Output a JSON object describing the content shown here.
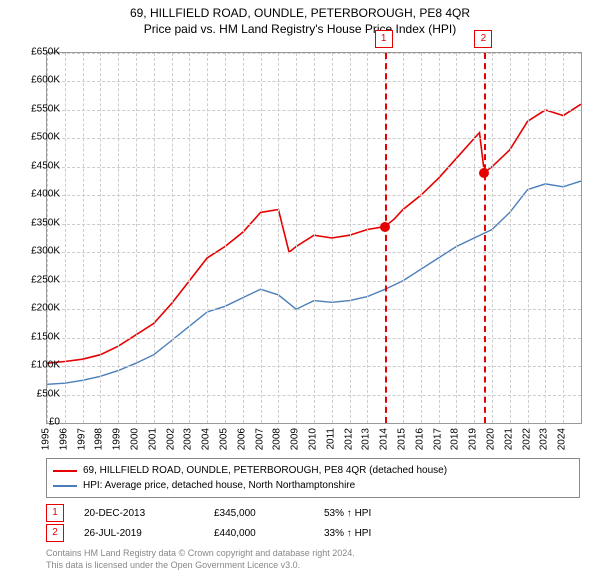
{
  "title_line1": "69, HILLFIELD ROAD, OUNDLE, PETERBOROUGH, PE8 4QR",
  "title_line2": "Price paid vs. HM Land Registry's House Price Index (HPI)",
  "chart": {
    "type": "line",
    "x_min": 1995,
    "x_max": 2025,
    "y_min": 0,
    "y_max": 650000,
    "y_tick_step": 50000,
    "y_tick_labels": [
      "£0",
      "£50K",
      "£100K",
      "£150K",
      "£200K",
      "£250K",
      "£300K",
      "£350K",
      "£400K",
      "£450K",
      "£500K",
      "£550K",
      "£600K",
      "£650K"
    ],
    "x_ticks": [
      1995,
      1996,
      1997,
      1998,
      1999,
      2000,
      2001,
      2002,
      2003,
      2004,
      2005,
      2006,
      2007,
      2008,
      2009,
      2010,
      2011,
      2012,
      2013,
      2014,
      2015,
      2016,
      2017,
      2018,
      2019,
      2020,
      2021,
      2022,
      2023,
      2024
    ],
    "grid_color": "#cccccc",
    "background_color": "#ffffff",
    "border_color": "#999999",
    "series": [
      {
        "name": "price_paid",
        "color": "#e60000",
        "width": 1.6,
        "points": [
          [
            1995,
            105000
          ],
          [
            1996,
            108000
          ],
          [
            1997,
            112000
          ],
          [
            1998,
            120000
          ],
          [
            1999,
            135000
          ],
          [
            2000,
            155000
          ],
          [
            2001,
            175000
          ],
          [
            2002,
            210000
          ],
          [
            2003,
            250000
          ],
          [
            2004,
            290000
          ],
          [
            2005,
            310000
          ],
          [
            2006,
            335000
          ],
          [
            2007,
            370000
          ],
          [
            2008,
            375000
          ],
          [
            2008.6,
            300000
          ],
          [
            2009,
            310000
          ],
          [
            2010,
            330000
          ],
          [
            2011,
            325000
          ],
          [
            2012,
            330000
          ],
          [
            2013,
            340000
          ],
          [
            2013.97,
            345000
          ],
          [
            2014.5,
            358000
          ],
          [
            2015,
            375000
          ],
          [
            2016,
            400000
          ],
          [
            2017,
            430000
          ],
          [
            2018,
            465000
          ],
          [
            2019,
            500000
          ],
          [
            2019.3,
            510000
          ],
          [
            2019.57,
            440000
          ],
          [
            2020,
            450000
          ],
          [
            2021,
            480000
          ],
          [
            2022,
            530000
          ],
          [
            2023,
            550000
          ],
          [
            2024,
            540000
          ],
          [
            2025,
            560000
          ]
        ]
      },
      {
        "name": "hpi",
        "color": "#4a7ebb",
        "width": 1.4,
        "points": [
          [
            1995,
            68000
          ],
          [
            1996,
            70000
          ],
          [
            1997,
            75000
          ],
          [
            1998,
            82000
          ],
          [
            1999,
            92000
          ],
          [
            2000,
            105000
          ],
          [
            2001,
            120000
          ],
          [
            2002,
            145000
          ],
          [
            2003,
            170000
          ],
          [
            2004,
            195000
          ],
          [
            2005,
            205000
          ],
          [
            2006,
            220000
          ],
          [
            2007,
            235000
          ],
          [
            2008,
            225000
          ],
          [
            2009,
            200000
          ],
          [
            2010,
            215000
          ],
          [
            2011,
            212000
          ],
          [
            2012,
            215000
          ],
          [
            2013,
            222000
          ],
          [
            2014,
            235000
          ],
          [
            2015,
            250000
          ],
          [
            2016,
            270000
          ],
          [
            2017,
            290000
          ],
          [
            2018,
            310000
          ],
          [
            2019,
            325000
          ],
          [
            2020,
            340000
          ],
          [
            2021,
            370000
          ],
          [
            2022,
            410000
          ],
          [
            2023,
            420000
          ],
          [
            2024,
            415000
          ],
          [
            2025,
            425000
          ]
        ]
      }
    ],
    "markers": [
      {
        "n": "1",
        "year": 2013.97,
        "price": 345000
      },
      {
        "n": "2",
        "year": 2019.57,
        "price": 440000
      }
    ]
  },
  "legend": {
    "items": [
      {
        "color": "#e60000",
        "label": "69, HILLFIELD ROAD, OUNDLE, PETERBOROUGH, PE8 4QR (detached house)"
      },
      {
        "color": "#4a7ebb",
        "label": "HPI: Average price, detached house, North Northamptonshire"
      }
    ]
  },
  "events": [
    {
      "n": "1",
      "date": "20-DEC-2013",
      "price": "£345,000",
      "pct": "53% ↑ HPI"
    },
    {
      "n": "2",
      "date": "26-JUL-2019",
      "price": "£440,000",
      "pct": "33% ↑ HPI"
    }
  ],
  "footer_line1": "Contains HM Land Registry data © Crown copyright and database right 2024.",
  "footer_line2": "This data is licensed under the Open Government Licence v3.0."
}
